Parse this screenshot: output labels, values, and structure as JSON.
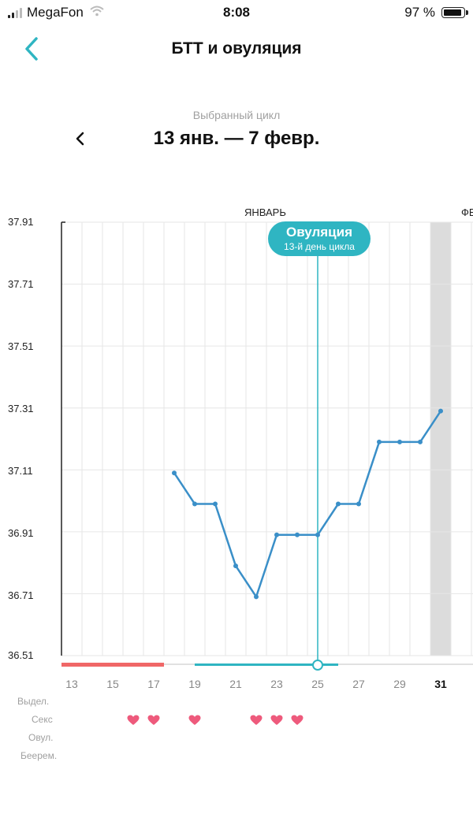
{
  "status_bar": {
    "carrier": "MegaFon",
    "time": "8:08",
    "battery": "97 %"
  },
  "nav": {
    "title": "БТТ и овуляция"
  },
  "cycle": {
    "label": "Выбранный цикл",
    "range": "13 янв. — 7 февр."
  },
  "months": {
    "jan": "ЯНВАРЬ",
    "feb": "ФЕ"
  },
  "ovulation": {
    "title": "Овуляция",
    "subtitle": "13-й день цикла",
    "day": 25
  },
  "legend": {
    "discharge": "Выдел.",
    "sex": "Секс",
    "ovulation": "Овул.",
    "pregnancy": "Беерем."
  },
  "colors": {
    "accent": "#2fb5c2",
    "line": "#3a8fc8",
    "period": "#f06767",
    "heart": "#ee5a7c",
    "highlight": "#dcdcdc"
  },
  "chart_data": {
    "type": "line",
    "title": "",
    "xlabel": "",
    "ylabel": "",
    "ylim": [
      36.51,
      37.91
    ],
    "y_ticks": [
      "37.91",
      "37.71",
      "37.51",
      "37.31",
      "37.11",
      "36.91",
      "36.71",
      "36.51"
    ],
    "x_ticks": [
      "13",
      "15",
      "17",
      "19",
      "21",
      "23",
      "25",
      "27",
      "29",
      "31"
    ],
    "selected_day": "31",
    "series": [
      {
        "x": [
          18,
          19,
          20,
          21,
          22,
          23,
          24,
          25,
          26,
          27,
          28,
          29,
          30,
          31
        ],
        "y": [
          37.1,
          37.0,
          37.0,
          36.8,
          36.7,
          36.9,
          36.9,
          36.9,
          37.0,
          37.0,
          37.2,
          37.2,
          37.2,
          37.3
        ]
      }
    ],
    "period_days": [
      13,
      14,
      15,
      16,
      17
    ],
    "fertile_window": [
      19,
      26
    ],
    "sex_days": [
      16,
      17,
      19,
      22,
      23,
      24
    ]
  }
}
